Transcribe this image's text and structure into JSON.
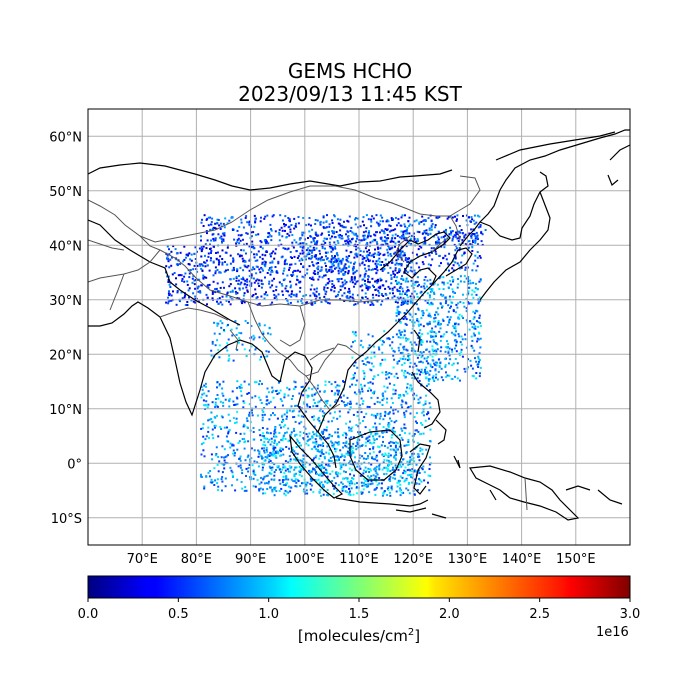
{
  "title": {
    "line1": "GEMS HCHO",
    "line2": "2023/09/13 11:45 KST"
  },
  "map": {
    "lon_range": [
      60,
      160
    ],
    "lat_range": [
      -15,
      65
    ],
    "lon_ticks": [
      "70°E",
      "80°E",
      "90°E",
      "100°E",
      "110°E",
      "120°E",
      "130°E",
      "140°E",
      "150°E"
    ],
    "lat_ticks": [
      "60°N",
      "50°N",
      "40°N",
      "30°N",
      "20°N",
      "10°N",
      "0°",
      "10°S"
    ],
    "grid": true
  },
  "colorbar": {
    "colormap": "jet",
    "ticks": [
      "0.0",
      "0.5",
      "1.0",
      "1.5",
      "2.0",
      "2.5",
      "3.0"
    ],
    "label_prefix": "[molecules/cm",
    "label_sup": "2",
    "label_suffix": "]",
    "exponent": "1e16"
  }
}
